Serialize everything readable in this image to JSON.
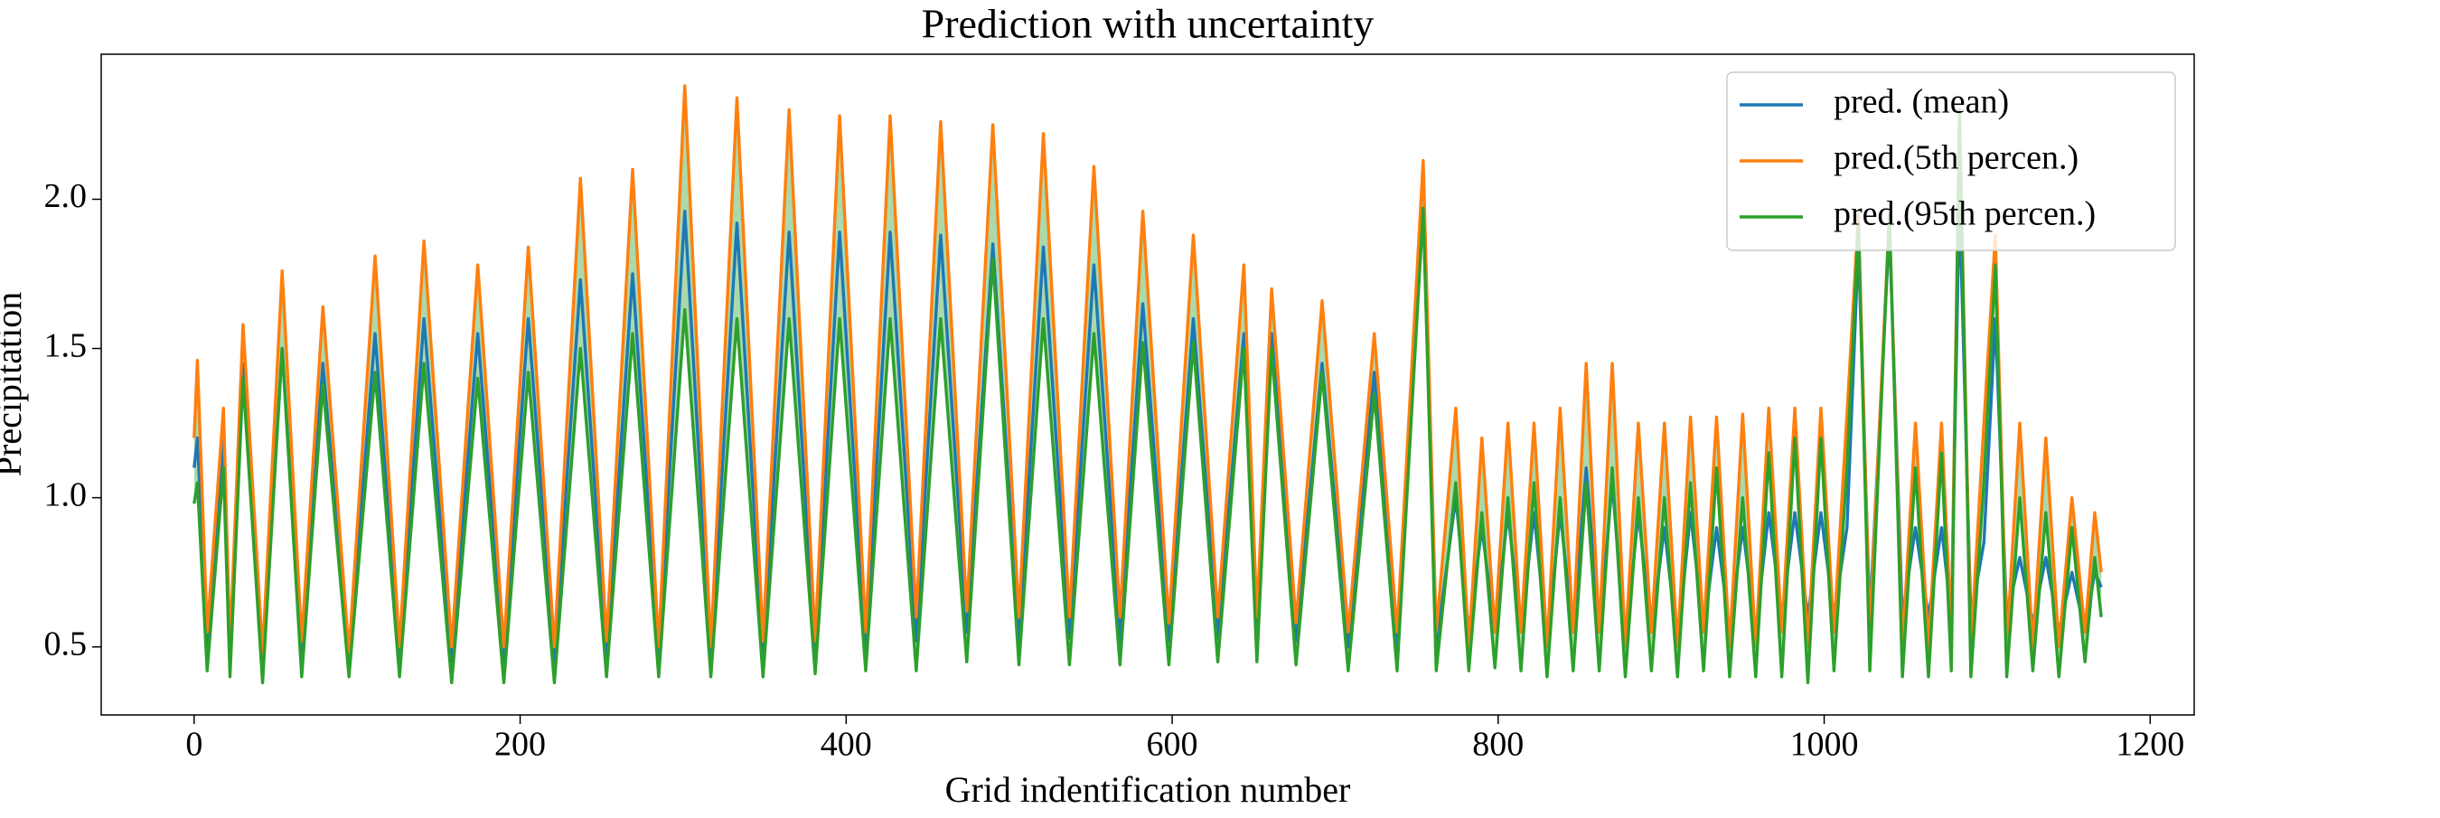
{
  "chart_data": {
    "type": "line",
    "title": "Prediction with uncertainty",
    "xlabel": "Grid indentification number",
    "ylabel": "Precipitation",
    "xlim": [
      -57,
      1227
    ],
    "ylim": [
      0.272,
      2.486
    ],
    "xticks": [
      0,
      200,
      400,
      600,
      800,
      1000,
      1200
    ],
    "yticks": [
      {
        "value": 0.5,
        "label": "0.5"
      },
      {
        "value": 1.0,
        "label": "1.0"
      },
      {
        "value": 1.5,
        "label": "1.5"
      },
      {
        "value": 2.0,
        "label": "2.0"
      }
    ],
    "grid": false,
    "legend": "upper right",
    "fill_between": {
      "series": [
        1,
        2
      ],
      "color": "#2ca02c",
      "alpha": 0.4
    },
    "x": [
      0,
      2,
      8,
      18,
      22,
      30,
      42,
      54,
      66,
      79,
      95,
      111,
      126,
      141,
      158,
      174,
      190,
      205,
      221,
      237,
      253,
      269,
      285,
      301,
      317,
      333,
      349,
      365,
      381,
      396,
      412,
      427,
      443,
      458,
      474,
      490,
      506,
      521,
      537,
      552,
      568,
      582,
      598,
      613,
      628,
      644,
      652,
      661,
      676,
      692,
      708,
      724,
      738,
      754,
      762,
      774,
      782,
      790,
      798,
      806,
      814,
      822,
      830,
      838,
      846,
      854,
      862,
      870,
      878,
      886,
      894,
      902,
      910,
      918,
      926,
      934,
      942,
      950,
      958,
      966,
      974,
      982,
      990,
      998,
      1006,
      1014,
      1021,
      1028,
      1040,
      1048,
      1056,
      1064,
      1072,
      1078,
      1083,
      1090,
      1098,
      1105,
      1112,
      1120,
      1128,
      1136,
      1144,
      1152,
      1160,
      1166,
      1170
    ],
    "series": [
      {
        "name": "pred. (mean)",
        "color": "#1f77b4",
        "values": [
          1.1,
          1.2,
          0.5,
          1.2,
          0.45,
          1.45,
          0.44,
          1.5,
          0.47,
          1.45,
          0.45,
          1.55,
          0.45,
          1.6,
          0.45,
          1.55,
          0.45,
          1.6,
          0.45,
          1.73,
          0.46,
          1.75,
          0.46,
          1.96,
          0.45,
          1.92,
          0.46,
          1.89,
          0.46,
          1.89,
          0.48,
          1.89,
          0.52,
          1.88,
          0.55,
          1.85,
          0.52,
          1.84,
          0.53,
          1.78,
          0.52,
          1.65,
          0.52,
          1.6,
          0.53,
          1.55,
          0.55,
          1.55,
          0.52,
          1.45,
          0.5,
          1.42,
          0.5,
          1.97,
          0.5,
          1.0,
          0.55,
          0.9,
          0.55,
          0.95,
          0.55,
          0.95,
          0.5,
          0.95,
          0.55,
          1.1,
          0.55,
          1.05,
          0.5,
          0.95,
          0.55,
          0.9,
          0.5,
          0.95,
          0.55,
          0.9,
          0.55,
          0.9,
          0.55,
          0.95,
          0.6,
          0.95,
          0.6,
          0.95,
          0.6,
          0.9,
          1.85,
          0.6,
          1.9,
          0.6,
          0.9,
          0.6,
          0.9,
          0.6,
          2.0,
          0.6,
          0.85,
          1.6,
          0.6,
          0.8,
          0.58,
          0.8,
          0.55,
          0.75,
          0.55,
          0.75,
          0.7
        ]
      },
      {
        "name": "pred.(5th percen.)",
        "color": "#ff7f0e",
        "values": [
          1.2,
          1.46,
          0.55,
          1.3,
          0.5,
          1.58,
          0.48,
          1.76,
          0.52,
          1.64,
          0.48,
          1.81,
          0.5,
          1.86,
          0.5,
          1.78,
          0.5,
          1.84,
          0.5,
          2.07,
          0.52,
          2.1,
          0.5,
          2.38,
          0.5,
          2.34,
          0.52,
          2.3,
          0.52,
          2.28,
          0.55,
          2.28,
          0.6,
          2.26,
          0.62,
          2.25,
          0.6,
          2.22,
          0.6,
          2.11,
          0.6,
          1.96,
          0.58,
          1.88,
          0.6,
          1.78,
          0.6,
          1.7,
          0.58,
          1.66,
          0.55,
          1.55,
          0.55,
          2.13,
          0.55,
          1.3,
          0.5,
          1.2,
          0.55,
          1.25,
          0.55,
          1.25,
          0.5,
          1.3,
          0.55,
          1.45,
          0.55,
          1.45,
          0.5,
          1.25,
          0.55,
          1.25,
          0.5,
          1.27,
          0.55,
          1.27,
          0.5,
          1.28,
          0.5,
          1.3,
          0.55,
          1.3,
          0.5,
          1.3,
          0.55,
          1.28,
          1.95,
          0.55,
          1.95,
          0.5,
          1.25,
          0.5,
          1.25,
          0.55,
          2.3,
          0.5,
          1.25,
          1.88,
          0.5,
          1.25,
          0.5,
          1.2,
          0.5,
          1.0,
          0.55,
          0.95,
          0.75
        ]
      },
      {
        "name": "pred.(95th percen.)",
        "color": "#2ca02c",
        "values": [
          0.98,
          1.05,
          0.42,
          1.1,
          0.4,
          1.4,
          0.38,
          1.5,
          0.4,
          1.38,
          0.4,
          1.42,
          0.4,
          1.45,
          0.38,
          1.4,
          0.38,
          1.42,
          0.38,
          1.5,
          0.4,
          1.55,
          0.4,
          1.63,
          0.4,
          1.6,
          0.4,
          1.6,
          0.41,
          1.6,
          0.42,
          1.6,
          0.42,
          1.6,
          0.45,
          1.8,
          0.44,
          1.6,
          0.44,
          1.55,
          0.44,
          1.52,
          0.44,
          1.52,
          0.45,
          1.5,
          0.45,
          1.5,
          0.44,
          1.42,
          0.42,
          1.35,
          0.42,
          1.97,
          0.42,
          1.05,
          0.42,
          0.95,
          0.43,
          1.0,
          0.42,
          1.05,
          0.4,
          1.0,
          0.42,
          1.05,
          0.42,
          1.1,
          0.4,
          1.0,
          0.42,
          1.0,
          0.4,
          1.05,
          0.42,
          1.1,
          0.4,
          1.0,
          0.4,
          1.15,
          0.4,
          1.2,
          0.38,
          1.2,
          0.42,
          1.1,
          1.92,
          0.42,
          1.95,
          0.4,
          1.1,
          0.4,
          1.15,
          0.42,
          2.3,
          0.4,
          1.05,
          1.78,
          0.4,
          1.0,
          0.42,
          0.95,
          0.4,
          0.9,
          0.45,
          0.8,
          0.6
        ]
      }
    ]
  }
}
